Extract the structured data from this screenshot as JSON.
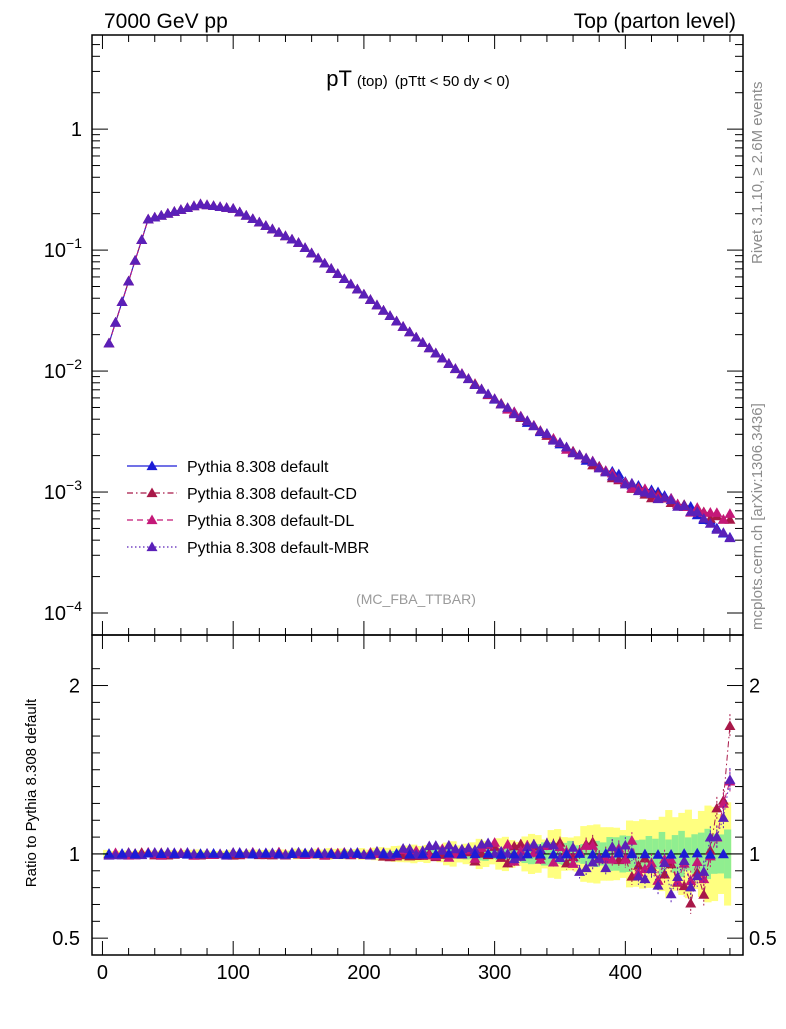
{
  "header": {
    "left": "7000 GeV pp",
    "right": "Top (parton level)"
  },
  "side_text": {
    "rivet": "Rivet 3.1.10, ≥ 2.6M events",
    "mcplots": "mcplots.cern.ch [arXiv:1306.3436]"
  },
  "chart_data": [
    {
      "type": "scatter",
      "title": "pT (top) (pTtt < 50 dy < 0)",
      "title_parts": {
        "main": "pT",
        "sub": "(top)",
        "cond": "(pTtt < 50 dy < 0)"
      },
      "watermark": "(MC_FBA_TTBAR)",
      "xlim": [
        -8,
        490
      ],
      "ylim": [
        0.0001,
        6
      ],
      "yscale": "log",
      "xticks": [
        "0",
        "100",
        "200",
        "300",
        "400"
      ],
      "yticks": [
        {
          "value": 1,
          "label": "1"
        },
        {
          "value": 0.1,
          "label": "10",
          "exp": "−1"
        },
        {
          "value": 0.01,
          "label": "10",
          "exp": "−2"
        },
        {
          "value": 0.001,
          "label": "10",
          "exp": "−3"
        },
        {
          "value": 0.0001,
          "label": "10",
          "exp": "−4"
        }
      ],
      "legend": {
        "placement": "bottom-left",
        "entries": [
          "Pythia 8.308 default",
          "Pythia 8.308 default-CD",
          "Pythia 8.308 default-DL",
          "Pythia 8.308 default-MBR"
        ]
      },
      "series": [
        {
          "name": "Pythia 8.308 default",
          "color": "#1c1cd6",
          "line": "solid",
          "x": [
            5,
            35,
            75,
            100,
            150,
            200,
            250,
            300,
            350,
            400,
            450,
            480
          ],
          "y": [
            0.017,
            0.18,
            0.24,
            0.22,
            0.115,
            0.043,
            0.0155,
            0.0058,
            0.0025,
            0.00125,
            0.00075,
            0.0004
          ]
        },
        {
          "name": "Pythia 8.308 default-CD",
          "color": "#a81848",
          "line": "dashdot",
          "x": [
            5,
            35,
            75,
            100,
            150,
            200,
            250,
            300,
            350,
            400,
            450,
            480
          ],
          "y": [
            0.017,
            0.18,
            0.24,
            0.22,
            0.115,
            0.043,
            0.0155,
            0.0058,
            0.0025,
            0.00115,
            0.0007,
            0.00058
          ]
        },
        {
          "name": "Pythia 8.308 default-DL",
          "color": "#c41878",
          "line": "dashed",
          "x": [
            5,
            35,
            75,
            100,
            150,
            200,
            250,
            300,
            350,
            400,
            450,
            480
          ],
          "y": [
            0.017,
            0.18,
            0.24,
            0.22,
            0.115,
            0.043,
            0.0155,
            0.0058,
            0.0025,
            0.0012,
            0.00072,
            0.00062
          ]
        },
        {
          "name": "Pythia 8.308 default-MBR",
          "color": "#5a20b8",
          "line": "dotted",
          "x": [
            5,
            35,
            75,
            100,
            150,
            200,
            250,
            300,
            350,
            400,
            450,
            480
          ],
          "y": [
            0.017,
            0.18,
            0.24,
            0.22,
            0.115,
            0.043,
            0.0155,
            0.0058,
            0.0025,
            0.0012,
            0.0007,
            0.00045
          ]
        }
      ]
    },
    {
      "type": "scatter",
      "ylabel": "Ratio to Pythia 8.308 default",
      "xlim": [
        -8,
        490
      ],
      "ylim": [
        0.4,
        2.3
      ],
      "xticks": [
        "0",
        "100",
        "200",
        "300",
        "400"
      ],
      "yticks": [
        {
          "value": 0.5,
          "label": "0.5"
        },
        {
          "value": 1,
          "label": "1"
        },
        {
          "value": 2,
          "label": "2"
        }
      ],
      "reference_line": 1,
      "bands": {
        "green_color": "#90ee90",
        "yellow_color": "#ffff80",
        "x": [
          5,
          100,
          200,
          250,
          300,
          350,
          400,
          450,
          480
        ],
        "green_halfwidth": [
          0.008,
          0.01,
          0.015,
          0.025,
          0.04,
          0.06,
          0.09,
          0.12,
          0.15
        ],
        "yellow_halfwidth": [
          0.02,
          0.022,
          0.03,
          0.05,
          0.08,
          0.12,
          0.18,
          0.24,
          0.28
        ]
      },
      "series": [
        {
          "name": "Pythia 8.308 default-CD",
          "x": [
            5,
            100,
            200,
            300,
            350,
            400,
            430,
            460,
            480
          ],
          "y": [
            1.0,
            1.0,
            1.0,
            0.99,
            1.02,
            0.98,
            0.86,
            0.78,
            1.65
          ]
        },
        {
          "name": "Pythia 8.308 default-DL",
          "x": [
            5,
            100,
            200,
            300,
            350,
            400,
            430,
            460,
            480
          ],
          "y": [
            1.0,
            1.0,
            1.0,
            1.02,
            0.99,
            1.03,
            0.9,
            0.85,
            1.55
          ]
        },
        {
          "name": "Pythia 8.308 default-MBR",
          "x": [
            5,
            100,
            200,
            300,
            350,
            400,
            430,
            460,
            480
          ],
          "y": [
            1.0,
            1.0,
            1.0,
            1.05,
            0.98,
            0.96,
            0.85,
            0.9,
            1.45
          ]
        }
      ]
    }
  ]
}
